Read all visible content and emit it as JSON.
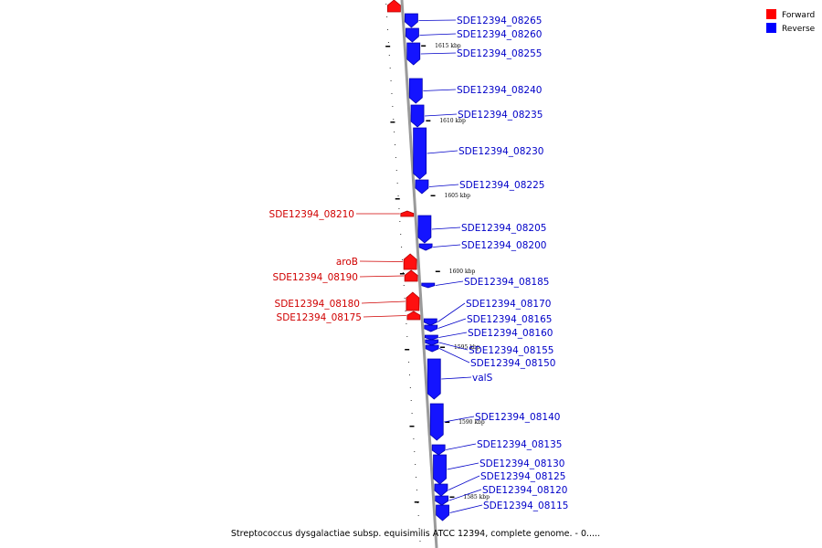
{
  "legend": [
    {
      "label": "Forward",
      "color": "#ff0000"
    },
    {
      "label": "Reverse",
      "color": "#0000ff"
    }
  ],
  "caption": "Streptococcus dysgalactiae subsp. equisimilis ATCC 12394, complete genome. - 0.....",
  "axis_ticks": [
    "1615 kbp",
    "1610 kbp",
    "1605 kbp",
    "1600 kbp",
    "1595 kbp",
    "1590 kbp",
    "1585 kbp"
  ],
  "genes": [
    {
      "label": "SDE12394_08265",
      "strand": "reverse"
    },
    {
      "label": "SDE12394_08260",
      "strand": "reverse"
    },
    {
      "label": "SDE12394_08255",
      "strand": "reverse"
    },
    {
      "label": "SDE12394_08240",
      "strand": "reverse"
    },
    {
      "label": "SDE12394_08235",
      "strand": "reverse"
    },
    {
      "label": "SDE12394_08230",
      "strand": "reverse"
    },
    {
      "label": "SDE12394_08225",
      "strand": "reverse"
    },
    {
      "label": "SDE12394_08210",
      "strand": "forward"
    },
    {
      "label": "SDE12394_08205",
      "strand": "reverse"
    },
    {
      "label": "SDE12394_08200",
      "strand": "reverse"
    },
    {
      "label": "aroB",
      "strand": "forward"
    },
    {
      "label": "SDE12394_08190",
      "strand": "forward"
    },
    {
      "label": "SDE12394_08185",
      "strand": "reverse"
    },
    {
      "label": "SDE12394_08180",
      "strand": "forward"
    },
    {
      "label": "SDE12394_08175",
      "strand": "forward"
    },
    {
      "label": "SDE12394_08170",
      "strand": "reverse"
    },
    {
      "label": "SDE12394_08165",
      "strand": "reverse"
    },
    {
      "label": "SDE12394_08160",
      "strand": "reverse"
    },
    {
      "label": "SDE12394_08155",
      "strand": "reverse"
    },
    {
      "label": "SDE12394_08150",
      "strand": "reverse"
    },
    {
      "label": "valS",
      "strand": "reverse"
    },
    {
      "label": "SDE12394_08140",
      "strand": "reverse"
    },
    {
      "label": "SDE12394_08135",
      "strand": "reverse"
    },
    {
      "label": "SDE12394_08130",
      "strand": "reverse"
    },
    {
      "label": "SDE12394_08125",
      "strand": "reverse"
    },
    {
      "label": "SDE12394_08120",
      "strand": "reverse"
    },
    {
      "label": "SDE12394_08115",
      "strand": "reverse"
    }
  ]
}
